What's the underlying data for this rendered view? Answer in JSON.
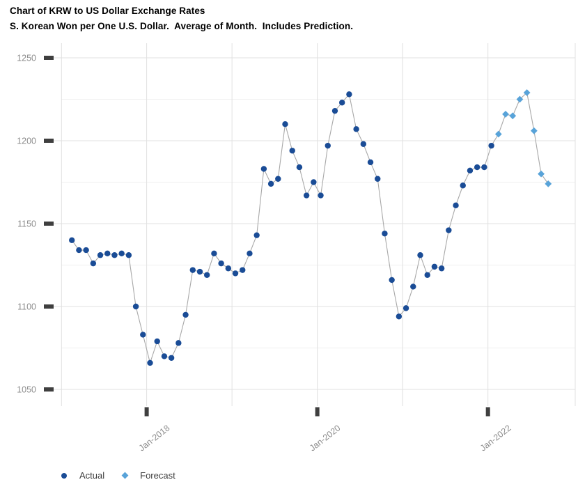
{
  "header": {
    "title": "Chart of KRW to US Dollar Exchange Rates",
    "subtitle": "S. Korean Won per One U.S. Dollar.  Average of Month.  Includes Prediction."
  },
  "chart_data": {
    "type": "line",
    "title": "Chart of KRW to US Dollar Exchange Rates",
    "subtitle": "S. Korean Won per One U.S. Dollar.  Average of Month.  Includes Prediction.",
    "x": [
      "Feb-2017",
      "Mar-2017",
      "Apr-2017",
      "May-2017",
      "Jun-2017",
      "Jul-2017",
      "Aug-2017",
      "Sep-2017",
      "Oct-2017",
      "Nov-2017",
      "Dec-2017",
      "Jan-2018",
      "Feb-2018",
      "Mar-2018",
      "Apr-2018",
      "May-2018",
      "Jun-2018",
      "Jul-2018",
      "Aug-2018",
      "Sep-2018",
      "Oct-2018",
      "Nov-2018",
      "Dec-2018",
      "Jan-2019",
      "Feb-2019",
      "Mar-2019",
      "Apr-2019",
      "May-2019",
      "Jun-2019",
      "Jul-2019",
      "Aug-2019",
      "Sep-2019",
      "Oct-2019",
      "Nov-2019",
      "Dec-2019",
      "Jan-2020",
      "Feb-2020",
      "Mar-2020",
      "Apr-2020",
      "May-2020",
      "Jun-2020",
      "Jul-2020",
      "Aug-2020",
      "Sep-2020",
      "Oct-2020",
      "Nov-2020",
      "Dec-2020",
      "Jan-2021",
      "Feb-2021",
      "Mar-2021",
      "Apr-2021",
      "May-2021",
      "Jun-2021",
      "Jul-2021",
      "Aug-2021",
      "Sep-2021",
      "Oct-2021",
      "Nov-2021",
      "Dec-2021",
      "Jan-2022",
      "Feb-2022",
      "Mar-2022",
      "Apr-2022",
      "May-2022",
      "Jun-2022",
      "Jul-2022",
      "Aug-2022",
      "Sep-2022"
    ],
    "series": [
      {
        "name": "Actual",
        "marker": "circle",
        "values": [
          1140,
          1134,
          1134,
          1126,
          1131,
          1132,
          1131,
          1132,
          1131,
          1100,
          1083,
          1066,
          1079,
          1070,
          1069,
          1078,
          1095,
          1122,
          1121,
          1119,
          1132,
          1126,
          1123,
          1120,
          1122,
          1132,
          1143,
          1183,
          1174,
          1177,
          1210,
          1194,
          1184,
          1167,
          1175,
          1167,
          1197,
          1218,
          1223,
          1228,
          1207,
          1198,
          1187,
          1177,
          1144,
          1116,
          1094,
          1099,
          1112,
          1131,
          1119,
          1124,
          1123,
          1146,
          1161,
          1173,
          1182,
          1184,
          1184,
          1197
        ]
      },
      {
        "name": "Forecast",
        "marker": "diamond",
        "values": [
          1204,
          1216,
          1215,
          1225,
          1229,
          1206,
          1180,
          1174
        ]
      }
    ],
    "y_axis": {
      "ticks": [
        1050,
        1100,
        1150,
        1200,
        1250
      ],
      "minor_ticks": [
        1075,
        1125,
        1175,
        1225
      ],
      "ylim": [
        1041,
        1258
      ]
    },
    "x_axis": {
      "tick_labels": [
        "Jan-2018",
        "Jan-2020",
        "Jan-2022"
      ]
    },
    "legend": {
      "position": "bottom-left",
      "items": [
        {
          "label": "Actual",
          "marker": "circle"
        },
        {
          "label": "Forecast",
          "marker": "diamond"
        }
      ]
    },
    "grid": "on",
    "colors": {
      "actual": "#1a4c96",
      "forecast": "#58a3d9",
      "line": "#a8a8a8",
      "grid_major": "#e0e0e0",
      "grid_minor": "#f0f0f0",
      "tick_mark": "#3f3f3f",
      "axis_label": "#8c8c8c",
      "legend_text": "#3d3d3d",
      "title_text": "#000000"
    }
  }
}
